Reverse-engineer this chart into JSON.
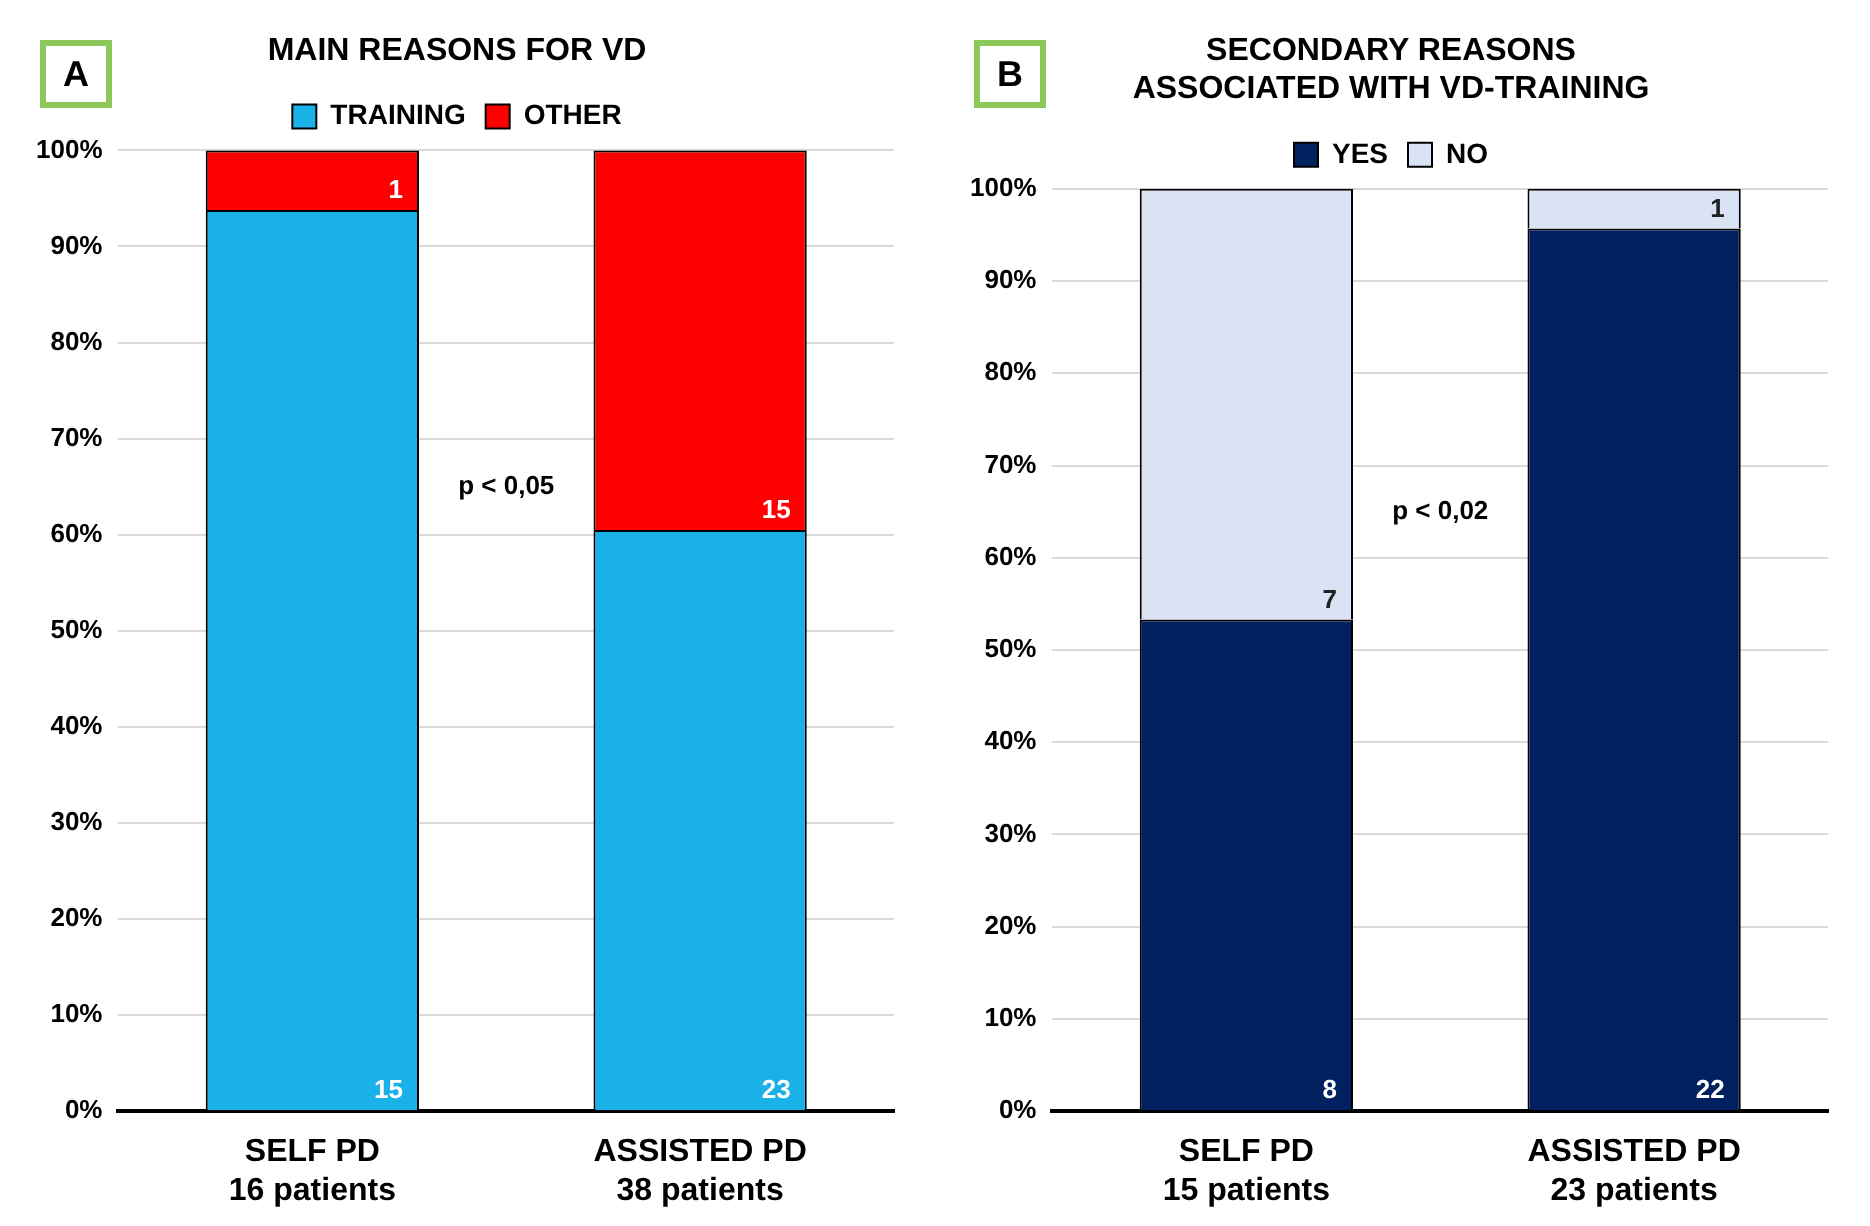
{
  "chart_data": [
    {
      "type": "bar",
      "title": "MAIN REASONS FOR VD",
      "categories": [
        "SELF PD\n16 patients",
        "ASSISTED PD\n38 patients"
      ],
      "stacked": true,
      "legend": "top",
      "grid": "y",
      "ylim": [
        0,
        100
      ],
      "yticks": [
        {
          "value": 0,
          "label": "0%"
        },
        {
          "value": 10,
          "label": "10%"
        },
        {
          "value": 20,
          "label": "20%"
        },
        {
          "value": 30,
          "label": "30%"
        },
        {
          "value": 40,
          "label": "40%"
        },
        {
          "value": 50,
          "label": "50%"
        },
        {
          "value": 60,
          "label": "60%"
        },
        {
          "value": 70,
          "label": "70%"
        },
        {
          "value": 80,
          "label": "80%"
        },
        {
          "value": 90,
          "label": "90%"
        },
        {
          "value": 100,
          "label": "100%"
        }
      ],
      "annotations": [
        "A",
        "p < 0,05",
        "15",
        "1",
        "23",
        "15"
      ],
      "series": [
        {
          "name": "TRAINING",
          "color": "#1ab0e8",
          "values": [
            93.8,
            60.5
          ]
        },
        {
          "name": "OTHER",
          "color": "#ff0000",
          "values": [
            6.2,
            39.5
          ]
        }
      ]
    },
    {
      "type": "bar",
      "title": "SECONDARY REASONS\nASSOCIATED WITH VD-TRAINING",
      "categories": [
        "SELF PD\n15 patients",
        "ASSISTED PD\n23 patients"
      ],
      "stacked": true,
      "legend": "top",
      "grid": "y",
      "ylim": [
        0,
        100
      ],
      "yticks": [
        {
          "value": 0,
          "label": "0%"
        },
        {
          "value": 10,
          "label": "10%"
        },
        {
          "value": 20,
          "label": "20%"
        },
        {
          "value": 30,
          "label": "30%"
        },
        {
          "value": 40,
          "label": "40%"
        },
        {
          "value": 50,
          "label": "50%"
        },
        {
          "value": 60,
          "label": "60%"
        },
        {
          "value": 70,
          "label": "70%"
        },
        {
          "value": 80,
          "label": "80%"
        },
        {
          "value": 90,
          "label": "90%"
        },
        {
          "value": 100,
          "label": "100%"
        }
      ],
      "annotations": [
        "B",
        "p < 0,02",
        "8",
        "7",
        "22",
        "1"
      ],
      "series": [
        {
          "name": "YES",
          "color": "#002060",
          "values": [
            53.3,
            95.7
          ]
        },
        {
          "name": "NO",
          "color": "#dae3f3",
          "values": [
            46.7,
            4.3
          ]
        }
      ]
    }
  ]
}
